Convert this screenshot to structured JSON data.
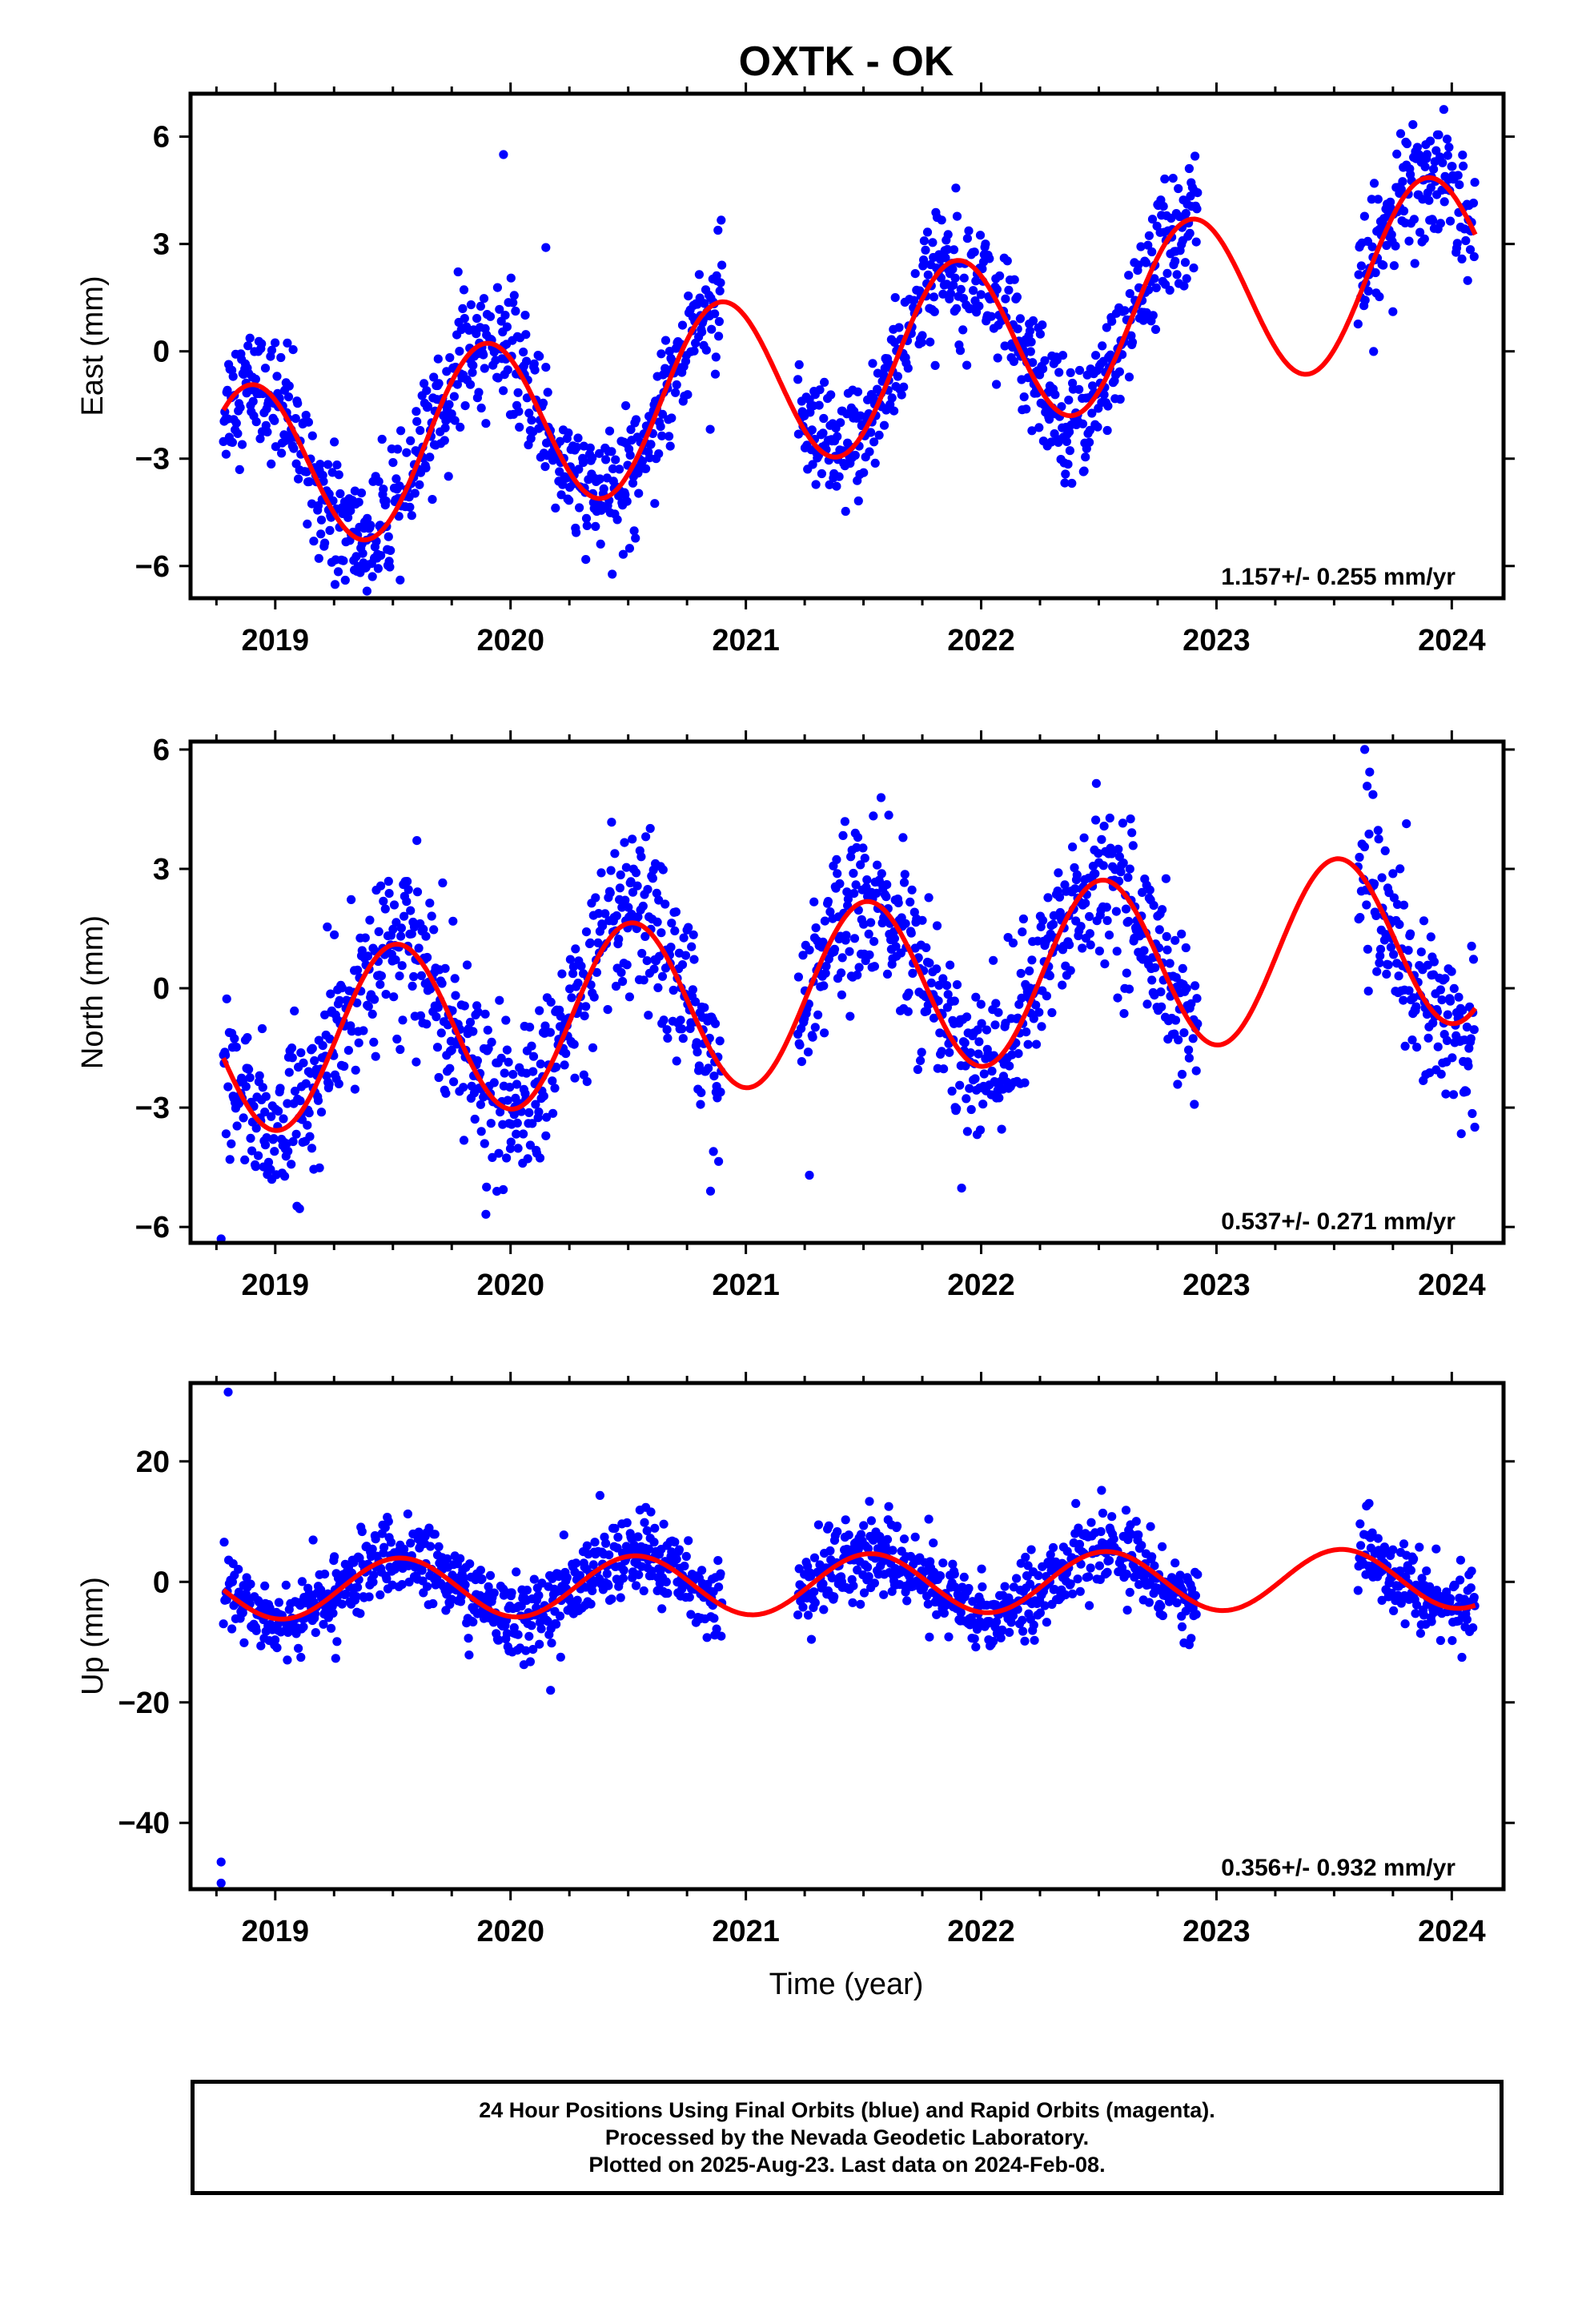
{
  "title": "OXTK - OK",
  "x_axis_label": "Time (year)",
  "colors": {
    "points": "#0000ff",
    "fit": "#ff0000",
    "frame": "#000000"
  },
  "footer": {
    "line1": "24 Hour Positions Using Final Orbits (blue) and Rapid Orbits (magenta).",
    "line2": "Processed by the Nevada Geodetic Laboratory.",
    "line3": "Plotted on 2025-Aug-23. Last data on 2024-Feb-08."
  },
  "chart_data": [
    {
      "type": "scatter",
      "component": "east",
      "ylabel": "East (mm)",
      "xlim": [
        2018.64,
        2024.22
      ],
      "ylim": [
        -6.9,
        7.2
      ],
      "x_ticks": [
        2019,
        2020,
        2021,
        2022,
        2023,
        2024
      ],
      "x_tick_labels": [
        "2019",
        "2020",
        "2021",
        "2022",
        "2023",
        "2024"
      ],
      "y_ticks": [
        -6,
        -3,
        0,
        3,
        6
      ],
      "y_tick_labels": [
        "−6",
        "−3",
        "0",
        "3",
        "6"
      ],
      "rate_label": "1.157+/- 0.255 mm/yr",
      "data_start": 2018.78,
      "data_end": 2024.1,
      "gaps": [
        [
          2020.9,
          2021.22
        ],
        [
          2022.92,
          2023.6
        ]
      ],
      "scatter_sd": 0.85,
      "fit": {
        "slope": 1.157,
        "intercept": -0.95,
        "sin_amp": -1.55,
        "cos_amp": 1.9,
        "t0": 2021.0
      },
      "outliers": [
        {
          "x": 2019.97,
          "y": 5.5
        },
        {
          "x": 2019.39,
          "y": -6.7
        },
        {
          "x": 2020.15,
          "y": 2.9
        }
      ]
    },
    {
      "type": "scatter",
      "component": "north",
      "ylabel": "North (mm)",
      "xlim": [
        2018.64,
        2024.22
      ],
      "ylim": [
        -6.4,
        6.2
      ],
      "x_ticks": [
        2019,
        2020,
        2021,
        2022,
        2023,
        2024
      ],
      "x_tick_labels": [
        "2019",
        "2020",
        "2021",
        "2022",
        "2023",
        "2024"
      ],
      "y_ticks": [
        -6,
        -3,
        0,
        3,
        6
      ],
      "y_tick_labels": [
        "−6",
        "−3",
        "0",
        "3",
        "6"
      ],
      "rate_label": "0.537+/- 0.271 mm/yr",
      "data_start": 2018.78,
      "data_end": 2024.1,
      "gaps": [
        [
          2020.9,
          2021.22
        ],
        [
          2022.92,
          2023.6
        ]
      ],
      "scatter_sd": 1.0,
      "fit": {
        "slope": 0.537,
        "intercept": -0.3,
        "sin_amp": -0.15,
        "cos_amp": -2.2,
        "t0": 2021.0
      },
      "outliers": [
        {
          "x": 2018.77,
          "y": -6.3
        },
        {
          "x": 2023.63,
          "y": 6.0
        },
        {
          "x": 2020.85,
          "y": -5.1
        },
        {
          "x": 2021.27,
          "y": -4.7
        }
      ]
    },
    {
      "type": "scatter",
      "component": "up",
      "ylabel": "Up (mm)",
      "xlim": [
        2018.64,
        2024.22
      ],
      "ylim": [
        -51,
        33
      ],
      "x_ticks": [
        2019,
        2020,
        2021,
        2022,
        2023,
        2024
      ],
      "x_tick_labels": [
        "2019",
        "2020",
        "2021",
        "2022",
        "2023",
        "2024"
      ],
      "y_ticks": [
        -40,
        -20,
        0,
        20
      ],
      "y_tick_labels": [
        "−40",
        "−20",
        "0",
        "20"
      ],
      "rate_label": "0.356+/- 0.932 mm/yr",
      "data_start": 2018.78,
      "data_end": 2024.1,
      "gaps": [
        [
          2020.9,
          2021.22
        ],
        [
          2022.92,
          2023.6
        ]
      ],
      "scatter_sd": 3.2,
      "fit": {
        "slope": 0.356,
        "intercept": -0.5,
        "sin_amp": -0.9,
        "cos_amp": -4.9,
        "t0": 2021.0
      },
      "outliers": [
        {
          "x": 2018.8,
          "y": 31.5
        },
        {
          "x": 2018.77,
          "y": -46.5
        },
        {
          "x": 2018.77,
          "y": -50
        },
        {
          "x": 2020.17,
          "y": -18
        }
      ]
    }
  ]
}
